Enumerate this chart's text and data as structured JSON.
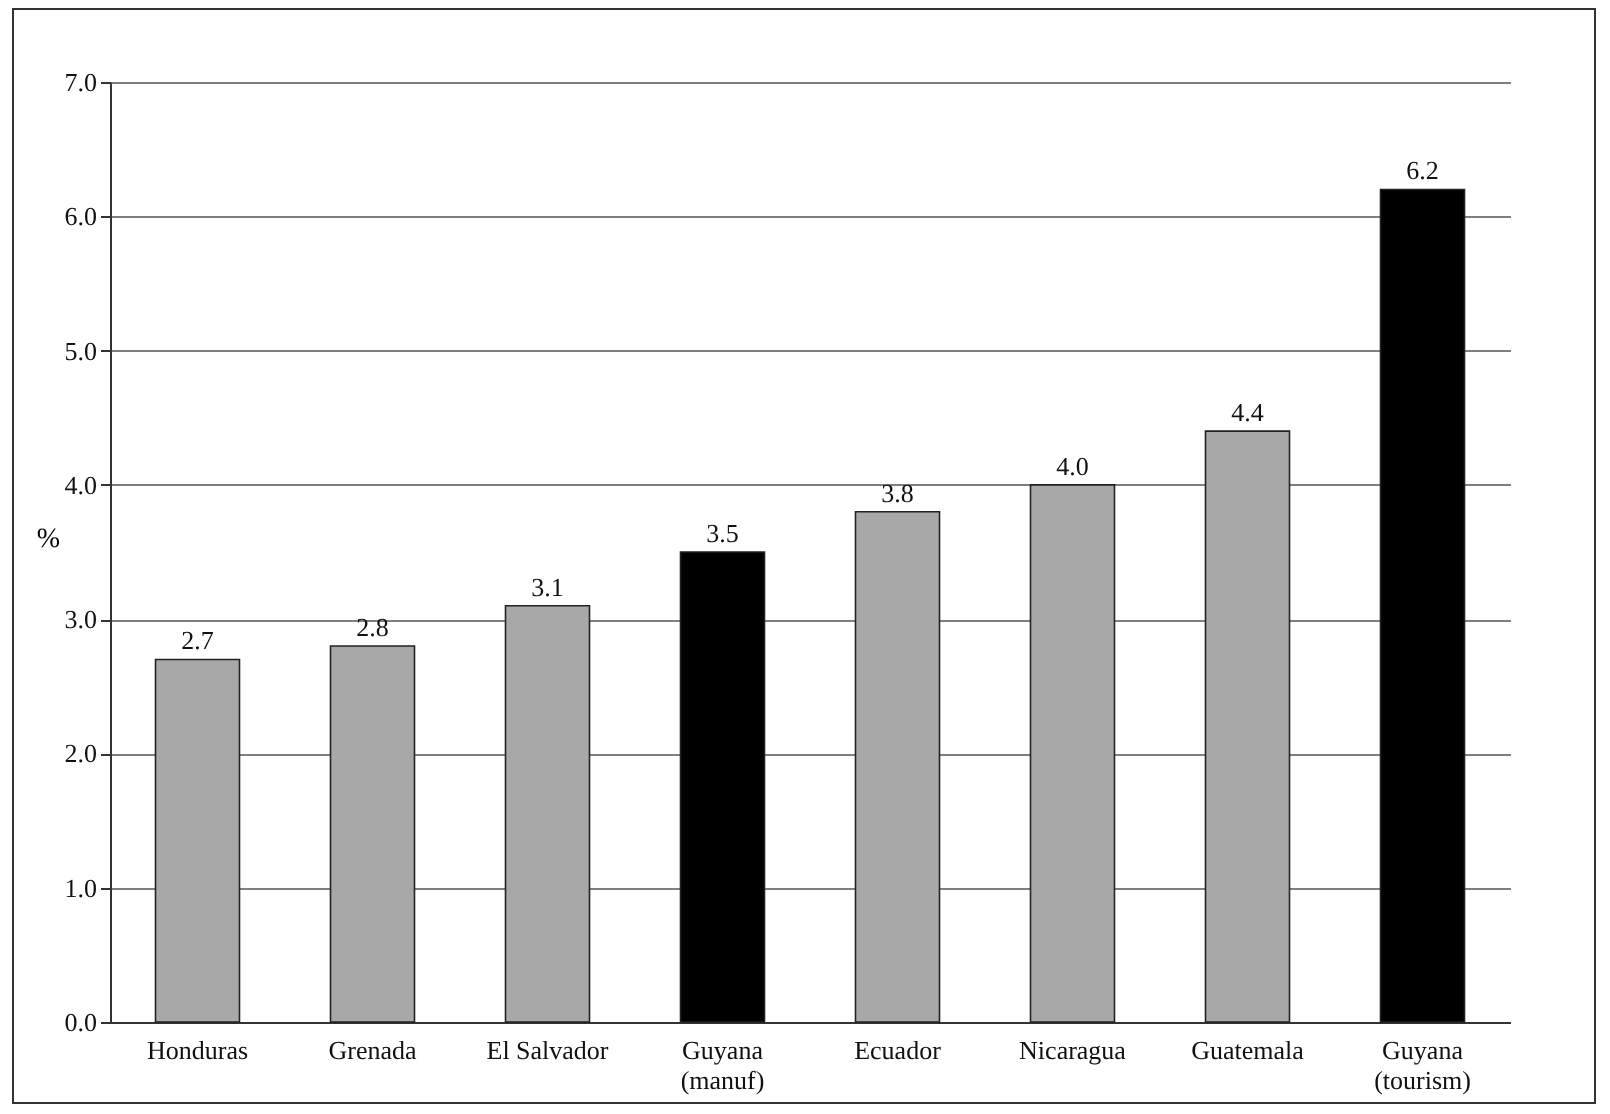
{
  "chart_data": {
    "type": "bar",
    "ylabel": "%",
    "categories": [
      "Honduras",
      "Grenada",
      "El Salvador",
      "Guyana (manuf)",
      "Ecuador",
      "Nicaragua",
      "Guatemala",
      "Guyana (tourism)"
    ],
    "values": [
      2.7,
      2.8,
      3.1,
      3.5,
      3.8,
      4.0,
      4.4,
      6.2
    ],
    "colors": [
      "#a8a8a8",
      "#a8a8a8",
      "#a8a8a8",
      "#000000",
      "#a8a8a8",
      "#a8a8a8",
      "#a8a8a8",
      "#000000"
    ],
    "ylim": [
      0,
      7
    ],
    "yticks": [
      {
        "value": 0,
        "label": "0.0"
      },
      {
        "value": 1,
        "label": "1.0"
      },
      {
        "value": 2,
        "label": "2.0"
      },
      {
        "value": 3,
        "label": "3.0"
      },
      {
        "value": 4,
        "label": "4.0"
      },
      {
        "value": 5,
        "label": "5.0"
      },
      {
        "value": 6,
        "label": "6.0"
      },
      {
        "value": 7,
        "label": "7.0"
      }
    ],
    "value_labels": [
      "2.7",
      "2.8",
      "3.1",
      "3.5",
      "3.8",
      "4.0",
      "4.4",
      "6.2"
    ],
    "grid": "y"
  }
}
